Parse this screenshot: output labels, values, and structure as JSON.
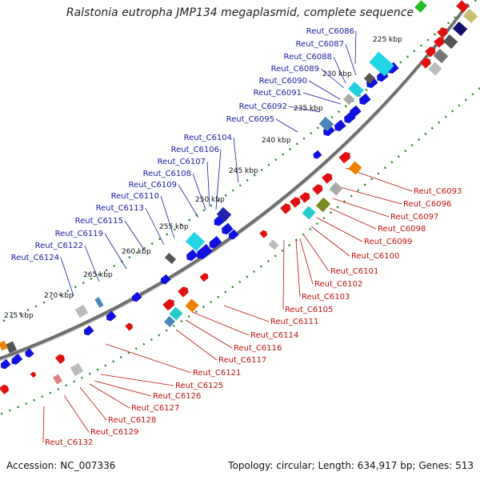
{
  "title": "Ralstonia eutropha JMP134 megaplasmid, complete sequence",
  "footer": {
    "accession": "Accession: NC_007336",
    "topology": "Topology: circular; Length: 634,917 bp; Genes: 513"
  },
  "ticks": [
    "225 kbp",
    "230 kbp",
    "235 kbp",
    "240 kbp",
    "245 kbp",
    "250 kbp",
    "255 kbp",
    "260 kbp",
    "265 kbp",
    "270 kbp",
    "275 kbp"
  ],
  "blue_labels": [
    "Reut_C6086",
    "Reut_C6087",
    "Reut_C6088",
    "Reut_C6089",
    "Reut_C6090",
    "Reut_C6091",
    "Reut_C6092",
    "Reut_C6095",
    "Reut_C6104",
    "Reut_C6106",
    "Reut_C6107",
    "Reut_C6108",
    "Reut_C6109",
    "Reut_C6110",
    "Reut_C6113",
    "Reut_C6115",
    "Reut_C6119",
    "Reut_C6122",
    "Reut_C6124"
  ],
  "red_labels": [
    "Reut_C6093",
    "Reut_C6096",
    "Reut_C6097",
    "Reut_C6098",
    "Reut_C6099",
    "Reut_C6100",
    "Reut_C6101",
    "Reut_C6102",
    "Reut_C6103",
    "Reut_C6105",
    "Reut_C6111",
    "Reut_C6114",
    "Reut_C6116",
    "Reut_C6117",
    "Reut_C6121",
    "Reut_C6125",
    "Reut_C6126",
    "Reut_C6127",
    "Reut_C6128",
    "Reut_C6129",
    "Reut_C6132"
  ],
  "colors": {
    "forward": "#1010e0",
    "reverse": "#e01010",
    "backbone": "#777777",
    "dots": "#228822",
    "blue_text": "#1a1aa0",
    "red_text": "#c01010"
  }
}
